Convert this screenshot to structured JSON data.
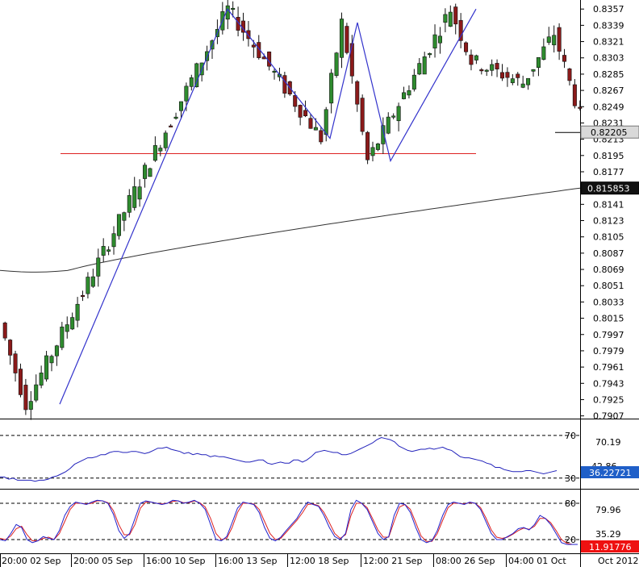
{
  "chart_data": [
    {
      "type": "candlestick",
      "panel": "price",
      "y_ticks": [
        "0.8357",
        "0.8339",
        "0.8321",
        "0.8303",
        "0.8285",
        "0.8267",
        "0.8249",
        "0.8231",
        "0.8213",
        "0.8195",
        "0.8177",
        "0.8159",
        "0.8141",
        "0.8123",
        "0.8105",
        "0.8087",
        "0.8069",
        "0.8051",
        "0.8033",
        "0.8015",
        "0.7997",
        "0.7979",
        "0.7961",
        "0.7943",
        "0.7925",
        "0.7907"
      ],
      "ylim": [
        0.7904,
        0.8367
      ],
      "current_price_label": "0.82205",
      "current_price": 0.82205,
      "ma_label": "0.815853",
      "ma_value": 0.815853,
      "support_level": 0.8197,
      "zigzag": [
        {
          "bar": 0,
          "price": 0.792
        },
        {
          "bar": 39,
          "price": 0.8357
        },
        {
          "bar": 57,
          "price": 0.8214
        },
        {
          "bar": 61,
          "price": 0.8342
        },
        {
          "bar": 66,
          "price": 0.8189
        },
        {
          "bar": 82,
          "price": 0.8357
        }
      ],
      "start_price": 0.8,
      "end_price": 0.8221,
      "colors": {
        "bull": "#2e8b2e",
        "bear": "#8b1a1a",
        "zigzag": "#3333cc",
        "support": "#dd2222",
        "ma": "#333333"
      }
    },
    {
      "type": "line",
      "panel": "rsi",
      "levels": [
        70,
        30
      ],
      "level_labels": [
        "70",
        "30"
      ],
      "right_labels": [
        "70.19",
        "36.22721"
      ],
      "overlapped_label": "42.86",
      "ylim": [
        20,
        85
      ],
      "series": [
        {
          "color": "#2222bb",
          "values": [
            31,
            31,
            29,
            30,
            28,
            28,
            28,
            28,
            27,
            28,
            28,
            29,
            31,
            32,
            34,
            36,
            39,
            43,
            45,
            47,
            49,
            49,
            50,
            52,
            52,
            54,
            55,
            55,
            54,
            54,
            55,
            55,
            54,
            53,
            54,
            56,
            58,
            58,
            59,
            57,
            56,
            55,
            53,
            54,
            52,
            53,
            52,
            52,
            50,
            51,
            50,
            50,
            49,
            48,
            47,
            46,
            45,
            45,
            46,
            47,
            47,
            44,
            43,
            44,
            45,
            44,
            44,
            47,
            47,
            45,
            47,
            50,
            54,
            55,
            56,
            55,
            54,
            54,
            52,
            52,
            53,
            55,
            57,
            59,
            61,
            63,
            66,
            68,
            67,
            66,
            64,
            60,
            58,
            56,
            55,
            56,
            57,
            57,
            58,
            57,
            58,
            59,
            57,
            56,
            53,
            50,
            49,
            49,
            48,
            47,
            46,
            44,
            43,
            40,
            40,
            38,
            37,
            36,
            36,
            36,
            37,
            37,
            36,
            35,
            34,
            35,
            36,
            37
          ]
        }
      ]
    },
    {
      "type": "line",
      "panel": "stochastic",
      "levels": [
        80,
        20
      ],
      "level_labels": [
        "80",
        "20"
      ],
      "right_labels": [
        "79.96",
        "35.29",
        "11.91776"
      ],
      "ylim": [
        0,
        100
      ],
      "series": [
        {
          "color": "#2222cc",
          "values": [
            20,
            18,
            30,
            45,
            40,
            20,
            15,
            18,
            25,
            22,
            20,
            35,
            60,
            75,
            82,
            80,
            78,
            82,
            85,
            84,
            80,
            62,
            35,
            22,
            30,
            55,
            80,
            84,
            82,
            80,
            78,
            80,
            85,
            84,
            80,
            82,
            85,
            80,
            70,
            45,
            20,
            18,
            25,
            48,
            72,
            82,
            80,
            78,
            65,
            40,
            22,
            18,
            24,
            35,
            45,
            55,
            70,
            82,
            78,
            75,
            60,
            40,
            25,
            20,
            30,
            70,
            85,
            80,
            70,
            50,
            30,
            20,
            25,
            60,
            80,
            78,
            65,
            40,
            20,
            15,
            18,
            35,
            60,
            78,
            82,
            80,
            78,
            82,
            80,
            70,
            50,
            30,
            20,
            20,
            25,
            30,
            38,
            40,
            36,
            45,
            60,
            55,
            45,
            30,
            15,
            12,
            12,
            12
          ]
        },
        {
          "color": "#dd2222",
          "values": [
            22,
            20,
            26,
            38,
            42,
            28,
            18,
            18,
            22,
            24,
            20,
            30,
            50,
            70,
            80,
            80,
            79,
            80,
            84,
            84,
            81,
            68,
            45,
            28,
            28,
            45,
            72,
            82,
            82,
            80,
            79,
            80,
            83,
            84,
            81,
            81,
            84,
            81,
            74,
            55,
            30,
            20,
            22,
            40,
            65,
            80,
            80,
            79,
            70,
            50,
            30,
            20,
            22,
            32,
            42,
            52,
            64,
            78,
            79,
            76,
            65,
            48,
            30,
            22,
            28,
            60,
            80,
            80,
            73,
            55,
            36,
            24,
            24,
            50,
            74,
            78,
            70,
            48,
            26,
            17,
            17,
            30,
            52,
            73,
            80,
            80,
            79,
            81,
            80,
            73,
            56,
            36,
            24,
            22,
            24,
            29,
            35,
            39,
            37,
            42,
            55,
            55,
            48,
            35,
            20,
            14,
            12,
            12
          ]
        }
      ]
    }
  ],
  "x_ticks": [
    "20:00 02 Sep",
    "20:00 05 Sep",
    "16:00 10 Sep",
    "16:00 13 Sep",
    "12:00 18 Sep",
    "12:00 21 Sep",
    "08:00 26 Sep",
    "04:00 01 Oct",
    "Oct 2012"
  ]
}
